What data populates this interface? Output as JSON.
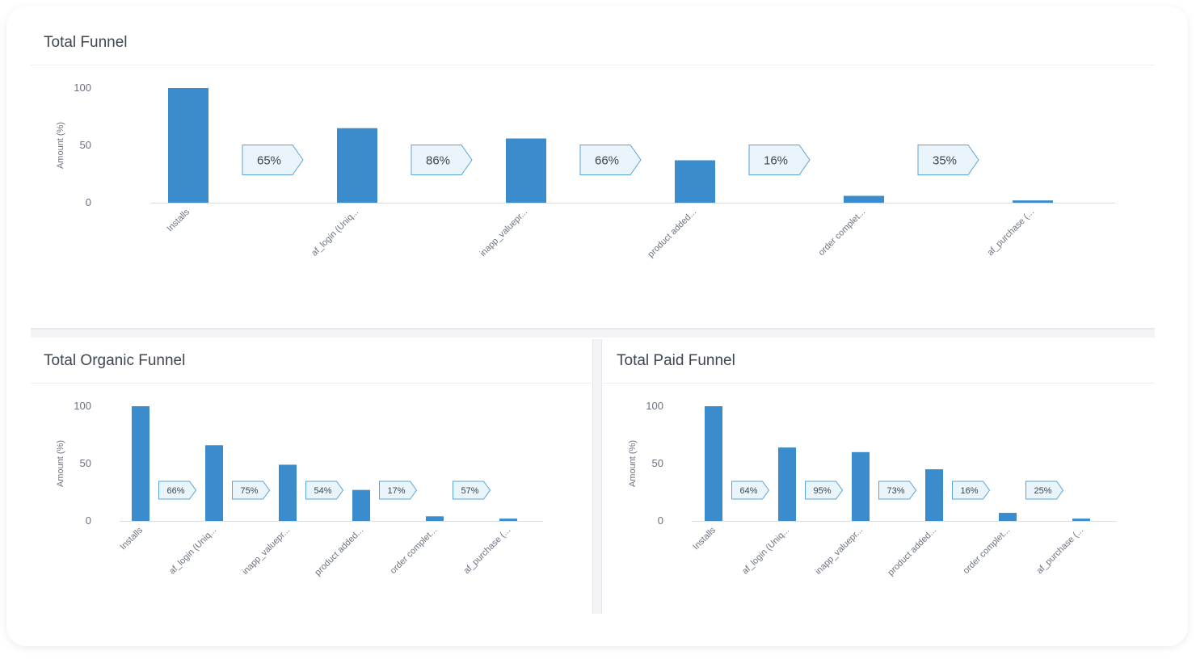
{
  "colors": {
    "bar": "#3b8ccc",
    "badge_fill": "#eaf4fb",
    "badge_stroke": "#5aa3d8",
    "text": "#3f4650",
    "tick": "#6b7280",
    "axis": "#d9dde2"
  },
  "chart_data": [
    {
      "type": "bar",
      "title": "Total Funnel",
      "ylabel": "Amount (%)",
      "ylim": [
        0,
        100
      ],
      "yticks": [
        0,
        50,
        100
      ],
      "categories": [
        "Installs",
        "af_login (Uniq...",
        "inapp_valuepr...",
        "product added...",
        "order complet...",
        "af_purchase (..."
      ],
      "values": [
        100,
        65,
        56,
        37,
        6,
        2
      ],
      "conversions": [
        "65%",
        "86%",
        "66%",
        "16%",
        "35%"
      ]
    },
    {
      "type": "bar",
      "title": "Total Organic Funnel",
      "ylabel": "Amount (%)",
      "ylim": [
        0,
        100
      ],
      "yticks": [
        0,
        50,
        100
      ],
      "categories": [
        "Installs",
        "af_login (Uniq...",
        "inapp_valuepr...",
        "product added...",
        "order complet...",
        "af_purchase (..."
      ],
      "values": [
        100,
        66,
        49,
        27,
        4,
        2
      ],
      "conversions": [
        "66%",
        "75%",
        "54%",
        "17%",
        "57%"
      ]
    },
    {
      "type": "bar",
      "title": "Total Paid Funnel",
      "ylabel": "Amount (%)",
      "ylim": [
        0,
        100
      ],
      "yticks": [
        0,
        50,
        100
      ],
      "categories": [
        "Installs",
        "af_login (Uniq...",
        "inapp_valuepr...",
        "product added...",
        "order complet...",
        "af_purchase (..."
      ],
      "values": [
        100,
        64,
        60,
        45,
        7,
        2
      ],
      "conversions": [
        "64%",
        "95%",
        "73%",
        "16%",
        "25%"
      ]
    }
  ]
}
